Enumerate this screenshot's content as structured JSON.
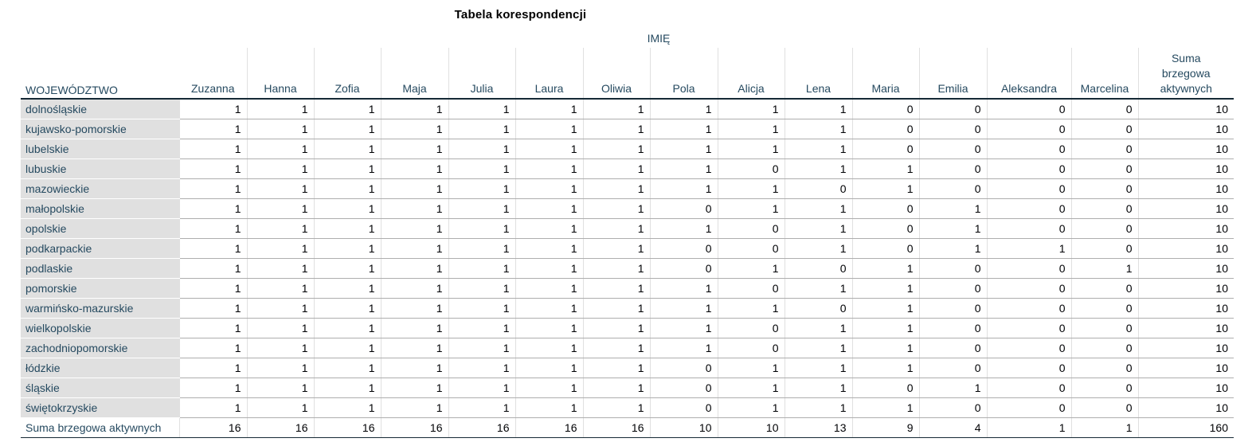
{
  "title": "Tabela korespondencji",
  "column_group": "IMIĘ",
  "row_header": "WOJEWÓDZTWO",
  "columns": [
    "Zuzanna",
    "Hanna",
    "Zofia",
    "Maja",
    "Julia",
    "Laura",
    "Oliwia",
    "Pola",
    "Alicja",
    "Lena",
    "Maria",
    "Emilia",
    "Aleksandra",
    "Marcelina",
    "Suma\nbrzegowa\naktywnych"
  ],
  "rows": [
    {
      "label": "dolnośląskie",
      "values": [
        "1",
        "1",
        "1",
        "1",
        "1",
        "1",
        "1",
        "1",
        "1",
        "1",
        "0",
        "0",
        "0",
        "0",
        "10"
      ]
    },
    {
      "label": "kujawsko-pomorskie",
      "values": [
        "1",
        "1",
        "1",
        "1",
        "1",
        "1",
        "1",
        "1",
        "1",
        "1",
        "0",
        "0",
        "0",
        "0",
        "10"
      ]
    },
    {
      "label": "lubelskie",
      "values": [
        "1",
        "1",
        "1",
        "1",
        "1",
        "1",
        "1",
        "1",
        "1",
        "1",
        "0",
        "0",
        "0",
        "0",
        "10"
      ]
    },
    {
      "label": "lubuskie",
      "values": [
        "1",
        "1",
        "1",
        "1",
        "1",
        "1",
        "1",
        "1",
        "0",
        "1",
        "1",
        "0",
        "0",
        "0",
        "10"
      ]
    },
    {
      "label": "mazowieckie",
      "values": [
        "1",
        "1",
        "1",
        "1",
        "1",
        "1",
        "1",
        "1",
        "1",
        "0",
        "1",
        "0",
        "0",
        "0",
        "10"
      ]
    },
    {
      "label": "małopolskie",
      "values": [
        "1",
        "1",
        "1",
        "1",
        "1",
        "1",
        "1",
        "0",
        "1",
        "1",
        "0",
        "1",
        "0",
        "0",
        "10"
      ]
    },
    {
      "label": "opolskie",
      "values": [
        "1",
        "1",
        "1",
        "1",
        "1",
        "1",
        "1",
        "1",
        "0",
        "1",
        "0",
        "1",
        "0",
        "0",
        "10"
      ]
    },
    {
      "label": "podkarpackie",
      "values": [
        "1",
        "1",
        "1",
        "1",
        "1",
        "1",
        "1",
        "0",
        "0",
        "1",
        "0",
        "1",
        "1",
        "0",
        "10"
      ]
    },
    {
      "label": "podlaskie",
      "values": [
        "1",
        "1",
        "1",
        "1",
        "1",
        "1",
        "1",
        "0",
        "1",
        "0",
        "1",
        "0",
        "0",
        "1",
        "10"
      ]
    },
    {
      "label": "pomorskie",
      "values": [
        "1",
        "1",
        "1",
        "1",
        "1",
        "1",
        "1",
        "1",
        "0",
        "1",
        "1",
        "0",
        "0",
        "0",
        "10"
      ]
    },
    {
      "label": "warmińsko-mazurskie",
      "values": [
        "1",
        "1",
        "1",
        "1",
        "1",
        "1",
        "1",
        "1",
        "1",
        "0",
        "1",
        "0",
        "0",
        "0",
        "10"
      ]
    },
    {
      "label": "wielkopolskie",
      "values": [
        "1",
        "1",
        "1",
        "1",
        "1",
        "1",
        "1",
        "1",
        "0",
        "1",
        "1",
        "0",
        "0",
        "0",
        "10"
      ]
    },
    {
      "label": "zachodniopomorskie",
      "values": [
        "1",
        "1",
        "1",
        "1",
        "1",
        "1",
        "1",
        "1",
        "0",
        "1",
        "1",
        "0",
        "0",
        "0",
        "10"
      ]
    },
    {
      "label": "łódzkie",
      "values": [
        "1",
        "1",
        "1",
        "1",
        "1",
        "1",
        "1",
        "0",
        "1",
        "1",
        "1",
        "0",
        "0",
        "0",
        "10"
      ]
    },
    {
      "label": "śląskie",
      "values": [
        "1",
        "1",
        "1",
        "1",
        "1",
        "1",
        "1",
        "0",
        "1",
        "1",
        "0",
        "1",
        "0",
        "0",
        "10"
      ]
    },
    {
      "label": "świętokrzyskie",
      "values": [
        "1",
        "1",
        "1",
        "1",
        "1",
        "1",
        "1",
        "0",
        "1",
        "1",
        "1",
        "0",
        "0",
        "0",
        "10"
      ]
    }
  ],
  "total_row": {
    "label": "Suma brzegowa aktywnych",
    "values": [
      "16",
      "16",
      "16",
      "16",
      "16",
      "16",
      "16",
      "10",
      "10",
      "13",
      "9",
      "4",
      "1",
      "1",
      "160"
    ]
  },
  "colors": {
    "header_text": "#264a60",
    "row_header_bg": "#e0e0e0",
    "rule_dark": "#152935",
    "rule_light": "#aeaeae"
  }
}
